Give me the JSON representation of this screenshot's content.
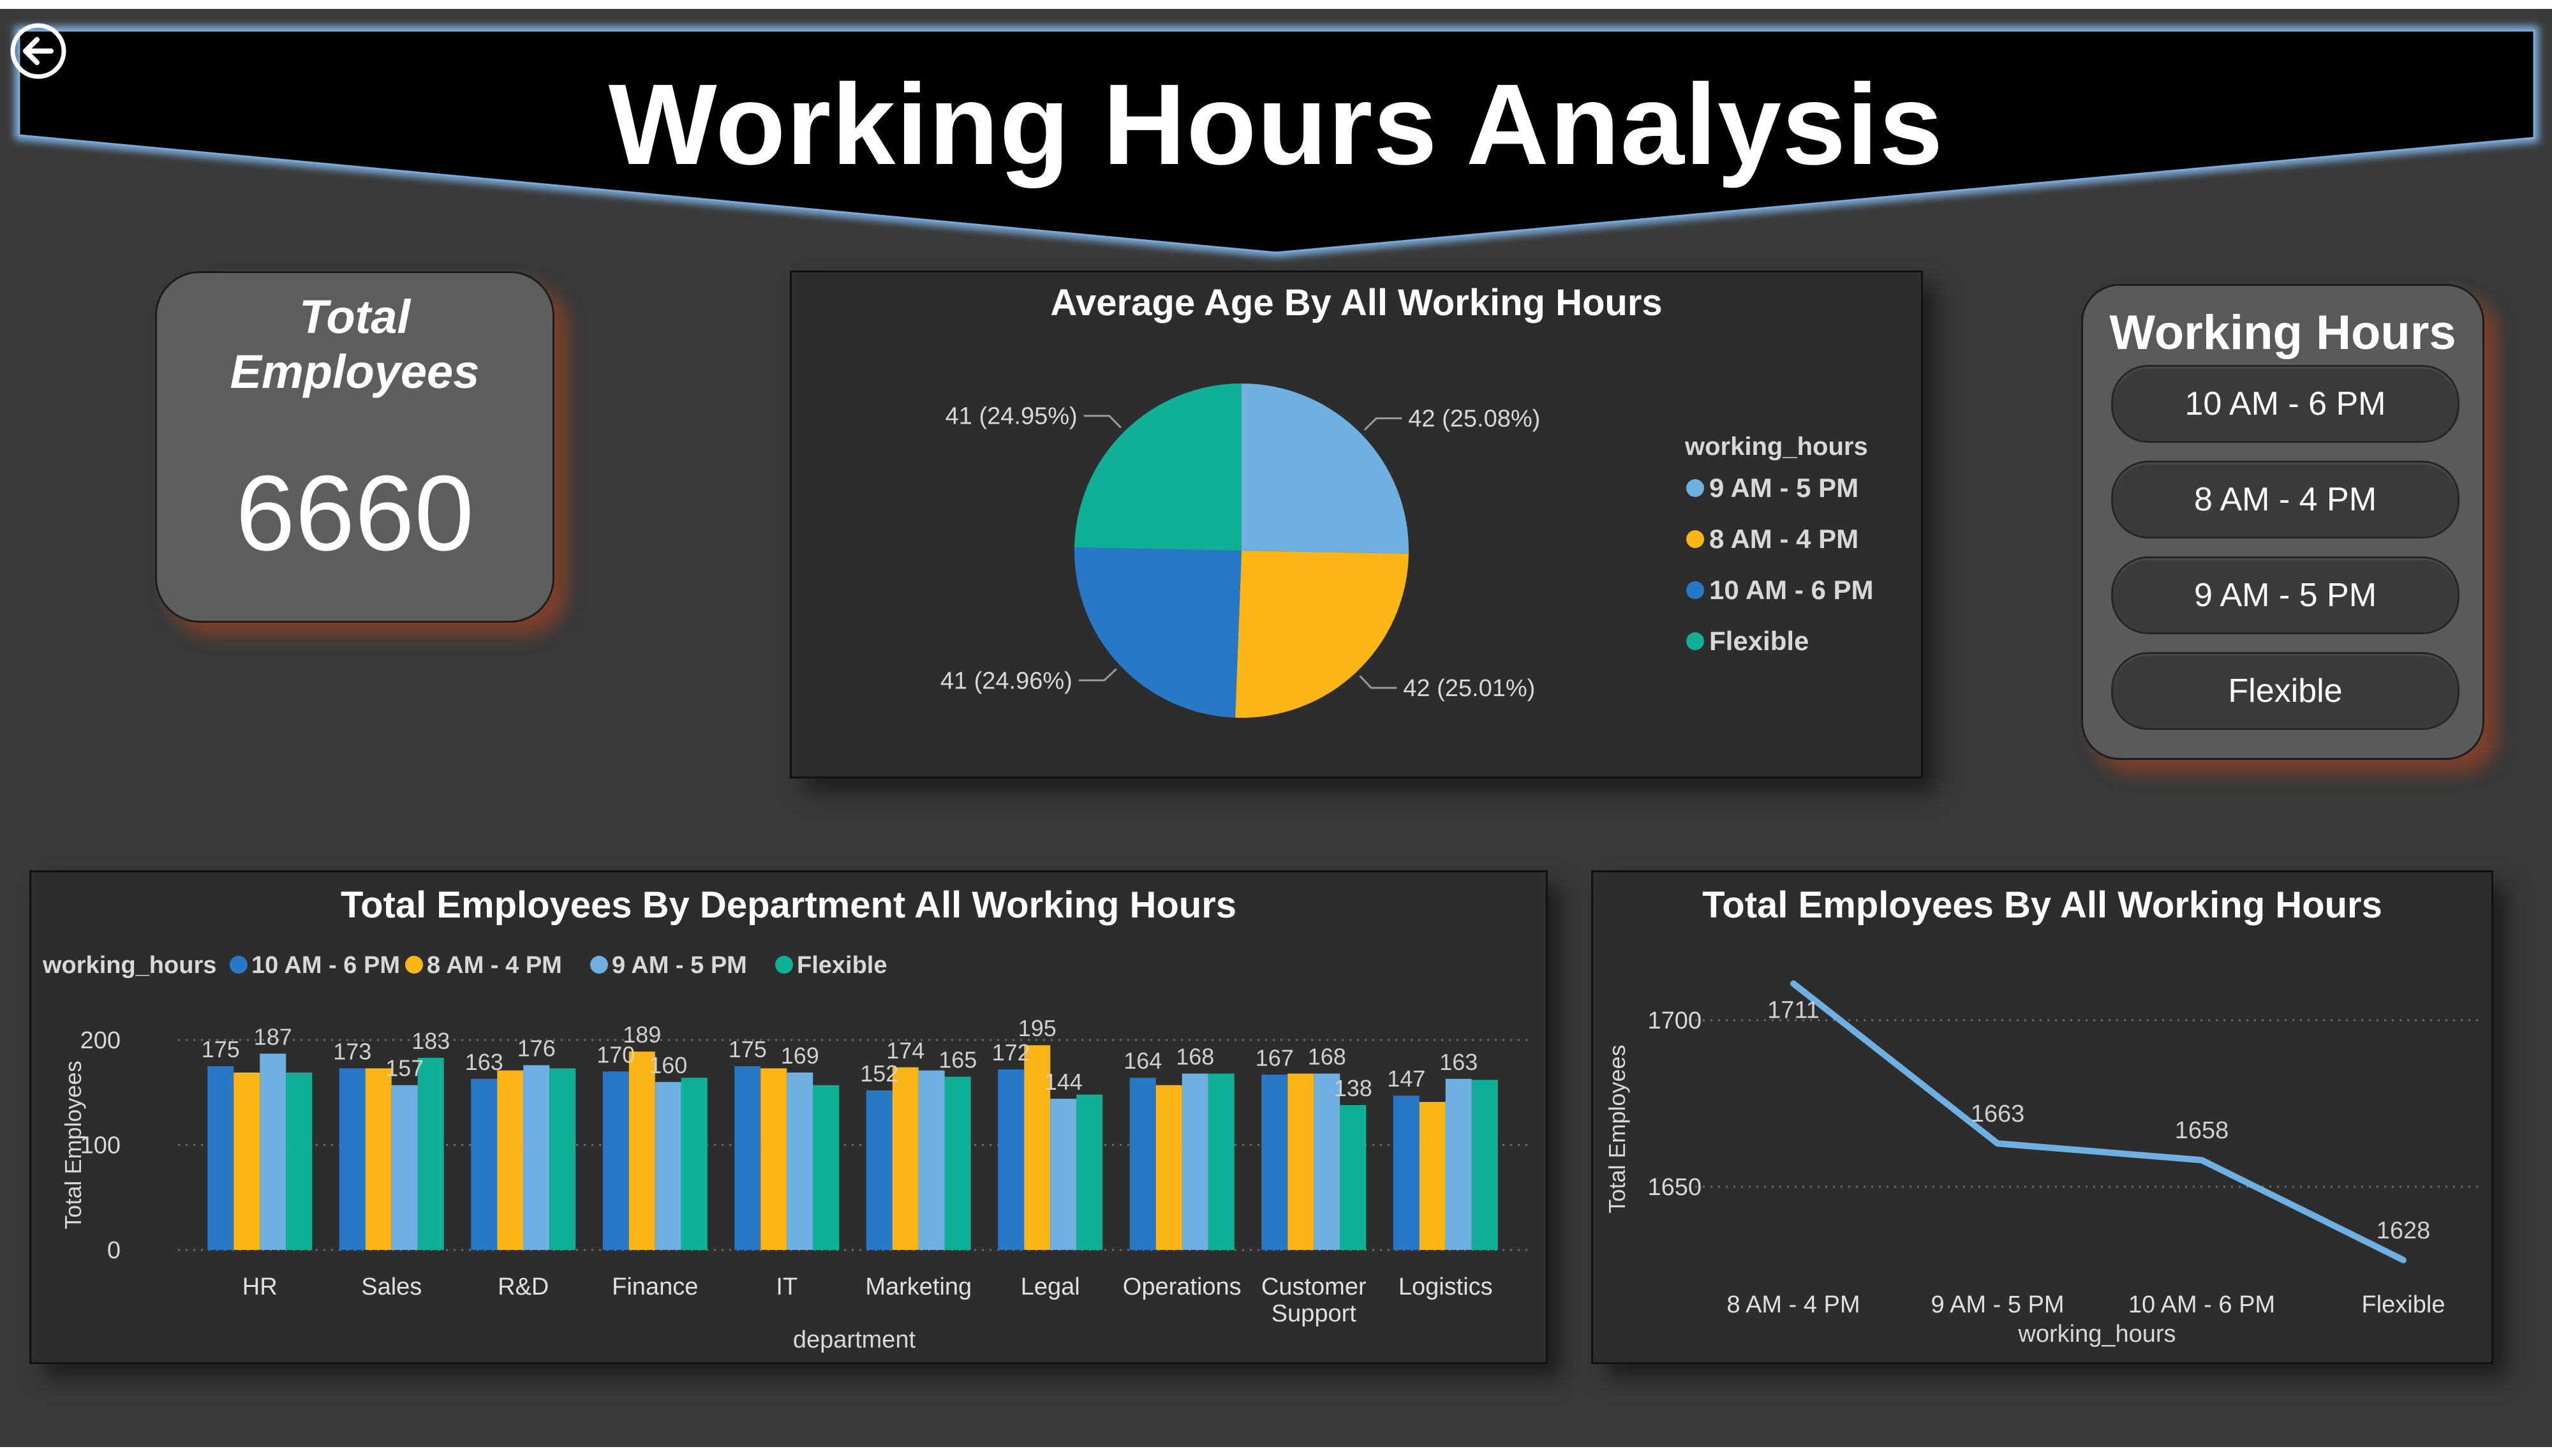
{
  "header": {
    "title": "Working Hours Analysis"
  },
  "kpi": {
    "title": "Total Employees",
    "value": "6660"
  },
  "slicer": {
    "title": "Working Hours",
    "items": [
      "10 AM - 6 PM",
      "8 AM - 4 PM",
      "9 AM - 5 PM",
      "Flexible"
    ]
  },
  "colors": {
    "10 AM - 6 PM": "#2878c8",
    "8 AM - 4 PM": "#fbb514",
    "9 AM - 5 PM": "#6fb0e2",
    "Flexible": "#0fb096"
  },
  "icons": {
    "back": "back-arrow-icon"
  },
  "chart_data": [
    {
      "type": "pie",
      "title": "Average Age By All Working Hours",
      "legend_title": "working_hours",
      "legend_position": "right",
      "slices": [
        {
          "name": "9 AM - 5 PM",
          "value": 42,
          "pct": "25.08%",
          "label": "42 (25.08%)"
        },
        {
          "name": "8 AM - 4 PM",
          "value": 42,
          "pct": "25.01%",
          "label": "42 (25.01%)"
        },
        {
          "name": "10 AM - 6 PM",
          "value": 41,
          "pct": "24.96%",
          "label": "41 (24.96%)"
        },
        {
          "name": "Flexible",
          "value": 41,
          "pct": "24.95%",
          "label": "41 (24.95%)"
        }
      ],
      "legend_order": [
        "9 AM - 5 PM",
        "8 AM - 4 PM",
        "10 AM - 6 PM",
        "Flexible"
      ]
    },
    {
      "type": "bar",
      "title": "Total Employees By Department All Working Hours",
      "legend_title": "working_hours",
      "legend_position": "top-left",
      "xlabel": "department",
      "ylabel": "Total Employees",
      "ylim": [
        0,
        200
      ],
      "yticks": [
        0,
        100,
        200
      ],
      "grid": true,
      "categories": [
        "HR",
        "Sales",
        "R&D",
        "Finance",
        "IT",
        "Marketing",
        "Legal",
        "Operations",
        "Customer Support",
        "Logistics"
      ],
      "series": [
        {
          "name": "10 AM - 6 PM",
          "values": [
            175,
            173,
            163,
            170,
            175,
            152,
            172,
            164,
            167,
            147
          ]
        },
        {
          "name": "8 AM - 4 PM",
          "values": [
            169,
            173,
            171,
            189,
            173,
            174,
            195,
            157,
            168,
            141
          ]
        },
        {
          "name": "9 AM - 5 PM",
          "values": [
            187,
            157,
            176,
            160,
            169,
            171,
            144,
            168,
            168,
            163
          ]
        },
        {
          "name": "Flexible",
          "values": [
            169,
            183,
            173,
            164,
            157,
            165,
            148,
            168,
            138,
            162
          ]
        }
      ],
      "labeled_points": [
        {
          "cat": 0,
          "series": 0,
          "text": "175"
        },
        {
          "cat": 0,
          "series": 2,
          "text": "187"
        },
        {
          "cat": 1,
          "series": 0,
          "text": "173"
        },
        {
          "cat": 1,
          "series": 2,
          "text": "157"
        },
        {
          "cat": 1,
          "series": 3,
          "text": "183"
        },
        {
          "cat": 2,
          "series": 0,
          "text": "163"
        },
        {
          "cat": 2,
          "series": 2,
          "text": "176"
        },
        {
          "cat": 3,
          "series": 0,
          "text": "170"
        },
        {
          "cat": 3,
          "series": 1,
          "text": "189"
        },
        {
          "cat": 3,
          "series": 2,
          "text": "160"
        },
        {
          "cat": 4,
          "series": 0,
          "text": "175"
        },
        {
          "cat": 4,
          "series": 2,
          "text": "169"
        },
        {
          "cat": 5,
          "series": 0,
          "text": "152"
        },
        {
          "cat": 5,
          "series": 1,
          "text": "174"
        },
        {
          "cat": 5,
          "series": 3,
          "text": "165"
        },
        {
          "cat": 6,
          "series": 0,
          "text": "172"
        },
        {
          "cat": 6,
          "series": 1,
          "text": "195"
        },
        {
          "cat": 6,
          "series": 2,
          "text": "144"
        },
        {
          "cat": 7,
          "series": 0,
          "text": "164"
        },
        {
          "cat": 7,
          "series": 2,
          "text": "168"
        },
        {
          "cat": 8,
          "series": 0,
          "text": "167"
        },
        {
          "cat": 8,
          "series": 2,
          "text": "168"
        },
        {
          "cat": 8,
          "series": 3,
          "text": "138"
        },
        {
          "cat": 9,
          "series": 0,
          "text": "147"
        },
        {
          "cat": 9,
          "series": 2,
          "text": "163"
        }
      ]
    },
    {
      "type": "line",
      "title": "Total Employees By All Working Hours",
      "xlabel": "working_hours",
      "ylabel": "Total Employees",
      "yticks": [
        1650,
        1700
      ],
      "ylim": [
        1620,
        1720
      ],
      "grid": true,
      "x": [
        "8 AM - 4 PM",
        "9 AM - 5 PM",
        "10 AM - 6 PM",
        "Flexible"
      ],
      "values": [
        1711,
        1663,
        1658,
        1628
      ],
      "labels": [
        "1711",
        "1663",
        "1658",
        "1628"
      ]
    }
  ]
}
